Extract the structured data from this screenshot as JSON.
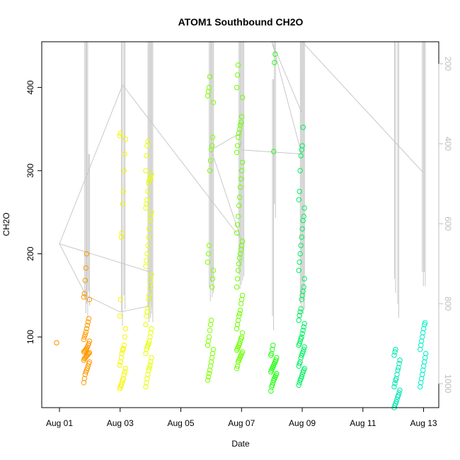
{
  "chart_data": {
    "type": "scatter",
    "title": "ATOM1 Southbound CH2O",
    "xlabel": "Date",
    "ylabel": "CH2O",
    "x_ticks": [
      "Aug 01",
      "Aug 03",
      "Aug 05",
      "Aug 07",
      "Aug 09",
      "Aug 11",
      "Aug 13"
    ],
    "y_ticks": [
      "100",
      "200",
      "300",
      "400"
    ],
    "y2_ticks": [
      "200",
      "400",
      "600",
      "800",
      "1000"
    ],
    "xlim": [
      "2016-07-31T10:00",
      "2016-08-13T12:00"
    ],
    "ylim": [
      15,
      455
    ],
    "y2lim": [
      1060,
      145
    ],
    "y2_reversed": true,
    "grid": false,
    "point_color_scale": [
      "#ff8000",
      "#ffff00",
      "#00ff00",
      "#00ffff"
    ],
    "line_color": "#c8c8c8",
    "clusters": [
      {
        "t": "2016-08-01T00:00",
        "color": "#ff8c00",
        "y": [
          93
        ]
      },
      {
        "t": "2016-08-01T21:30",
        "color": "#ff9a00",
        "y": [
          45,
          50,
          55,
          58,
          60,
          62,
          65,
          68,
          70,
          72,
          74,
          75,
          76,
          77,
          78,
          79,
          80,
          81,
          82,
          83,
          84,
          85,
          86,
          88,
          90,
          92,
          95,
          97,
          100,
          103,
          106,
          110,
          114,
          118,
          122,
          145,
          148,
          152,
          168,
          183,
          200
        ]
      },
      {
        "t": "2016-08-03T02:00",
        "color": "#f5f500",
        "y": [
          38,
          40,
          42,
          45,
          48,
          50,
          55,
          58,
          62,
          66,
          70,
          75,
          80,
          84,
          86,
          90,
          100,
          110,
          125,
          145,
          220,
          225,
          260,
          275,
          300,
          320,
          338,
          342,
          345
        ]
      },
      {
        "t": "2016-08-03T22:30",
        "color": "#e6ff00",
        "y": [
          40,
          45,
          50,
          55,
          60,
          63,
          66,
          70,
          75,
          80,
          85,
          88,
          90,
          92,
          95,
          100,
          105,
          110,
          115,
          125,
          130,
          135,
          145,
          150,
          160,
          168,
          175,
          185,
          192,
          200,
          210,
          220,
          230,
          240,
          245,
          250,
          255,
          260,
          265,
          275,
          285,
          288,
          290,
          292,
          296,
          300,
          318,
          330,
          335
        ]
      },
      {
        "t": "2016-08-05T23:30",
        "color": "#80ff00",
        "y": [
          48,
          52,
          56,
          60,
          65,
          70,
          75,
          80,
          85,
          90,
          95,
          100,
          108,
          115,
          120,
          160,
          170,
          180,
          190,
          200,
          210,
          300,
          312,
          325,
          330,
          340,
          382,
          390,
          395,
          400,
          413
        ]
      },
      {
        "t": "2016-08-06T22:30",
        "color": "#6dff00",
        "y": [
          62,
          65,
          70,
          72,
          74,
          76,
          78,
          80,
          82,
          84,
          86,
          88,
          90,
          92,
          95,
          98,
          100,
          105,
          110,
          115,
          120,
          125,
          128,
          132,
          140,
          145,
          150,
          160,
          170,
          180,
          188,
          195,
          200,
          205,
          210,
          215,
          225,
          235,
          245,
          258,
          268,
          280,
          290,
          300,
          310,
          322,
          330,
          340,
          345,
          350,
          355,
          358,
          365,
          388,
          400,
          415,
          427
        ]
      },
      {
        "t": "2016-08-08T01:30",
        "color": "#20ff10",
        "y": [
          35,
          40,
          42,
          45,
          48,
          50,
          52,
          54,
          56,
          58,
          60,
          62,
          64,
          66,
          68,
          70,
          72,
          75,
          78,
          80,
          85,
          90,
          323,
          430,
          440
        ]
      },
      {
        "t": "2016-08-08T23:30",
        "color": "#00f060",
        "y": [
          42,
          45,
          48,
          50,
          52,
          55,
          58,
          60,
          62,
          65,
          68,
          70,
          75,
          78,
          80,
          82,
          85,
          88,
          90,
          92,
          95,
          98,
          100,
          104,
          108,
          112,
          116,
          120,
          126,
          130,
          134,
          145,
          150,
          155,
          160,
          170,
          180,
          190,
          200,
          210,
          220,
          230,
          240,
          245,
          255,
          265,
          275,
          300,
          318,
          325,
          330,
          352
        ]
      },
      {
        "t": "2016-08-12T03:00",
        "color": "#00e8b0",
        "y": [
          15,
          18,
          20,
          22,
          25,
          28,
          30,
          33,
          36,
          40,
          44,
          48,
          50,
          55,
          60,
          63,
          68,
          72,
          78,
          82,
          85
        ]
      },
      {
        "t": "2016-08-12T23:30",
        "color": "#00f0c8",
        "y": [
          40,
          45,
          50,
          55,
          60,
          65,
          70,
          75,
          80,
          85,
          90,
          95,
          100,
          105,
          110,
          115,
          117
        ]
      }
    ],
    "flight_track": [
      {
        "t": "2016-08-01T00:00",
        "y": 212
      },
      {
        "t": "2016-08-01T21:00",
        "y": 150
      },
      {
        "t": "2016-08-03T00:00",
        "y": 130
      },
      {
        "t": "2016-08-03T22:30",
        "y": 137
      },
      {
        "t": "2016-08-04T00:00",
        "y": 178
      },
      {
        "t": "2016-08-01T00:00",
        "y": 212
      },
      {
        "t": "2016-08-03T02:00",
        "y": 403
      },
      {
        "t": "2016-08-06T23:30",
        "y": 218
      },
      {
        "t": "2016-08-06T00:00",
        "y": 325
      },
      {
        "t": "2016-08-06T22:30",
        "y": 345
      },
      {
        "t": "2016-08-07T00:00",
        "y": 325
      },
      {
        "t": "2016-08-08T23:30",
        "y": 320
      },
      {
        "t": "2016-08-08T00:00",
        "y": 455
      },
      {
        "t": "2016-08-08T23:30",
        "y": 370
      },
      {
        "t": "2016-08-09T00:00",
        "y": 455
      },
      {
        "t": "2016-08-12T23:30",
        "y": 298
      }
    ],
    "spikes": [
      {
        "t": "2016-08-01T20:00",
        "top": 455,
        "bottom": 145
      },
      {
        "t": "2016-08-01T21:30",
        "top": 455,
        "bottom": 140
      },
      {
        "t": "2016-08-01T23:00",
        "top": 320,
        "bottom": 155
      },
      {
        "t": "2016-08-03T01:00",
        "top": 455,
        "bottom": 130
      },
      {
        "t": "2016-08-03T03:00",
        "top": 455,
        "bottom": 150
      },
      {
        "t": "2016-08-03T22:00",
        "top": 455,
        "bottom": 135
      },
      {
        "t": "2016-08-03T23:00",
        "top": 455,
        "bottom": 140
      },
      {
        "t": "2016-08-04T00:00",
        "top": 455,
        "bottom": 145
      },
      {
        "t": "2016-08-04T01:00",
        "top": 455,
        "bottom": 135
      },
      {
        "t": "2016-08-05T22:30",
        "top": 455,
        "bottom": 160
      },
      {
        "t": "2016-08-06T00:00",
        "top": 455,
        "bottom": 165
      },
      {
        "t": "2016-08-06T01:00",
        "top": 455,
        "bottom": 170
      },
      {
        "t": "2016-08-06T22:00",
        "top": 455,
        "bottom": 175
      },
      {
        "t": "2016-08-06T23:00",
        "top": 455,
        "bottom": 180
      },
      {
        "t": "2016-08-07T00:00",
        "top": 455,
        "bottom": 185
      },
      {
        "t": "2016-08-07T01:00",
        "top": 455,
        "bottom": 190
      },
      {
        "t": "2016-08-08T00:30",
        "top": 410,
        "bottom": 125
      },
      {
        "t": "2016-08-08T02:00",
        "top": 455,
        "bottom": 260
      },
      {
        "t": "2016-08-08T22:30",
        "top": 455,
        "bottom": 140
      },
      {
        "t": "2016-08-09T00:00",
        "top": 455,
        "bottom": 145
      },
      {
        "t": "2016-08-09T01:00",
        "top": 455,
        "bottom": 150
      },
      {
        "t": "2016-08-12T01:00",
        "top": 455,
        "bottom": 170
      },
      {
        "t": "2016-08-12T03:30",
        "top": 455,
        "bottom": 140
      },
      {
        "t": "2016-08-12T23:00",
        "top": 455,
        "bottom": 178
      },
      {
        "t": "2016-08-13T00:30",
        "top": 455,
        "bottom": 178
      }
    ]
  }
}
